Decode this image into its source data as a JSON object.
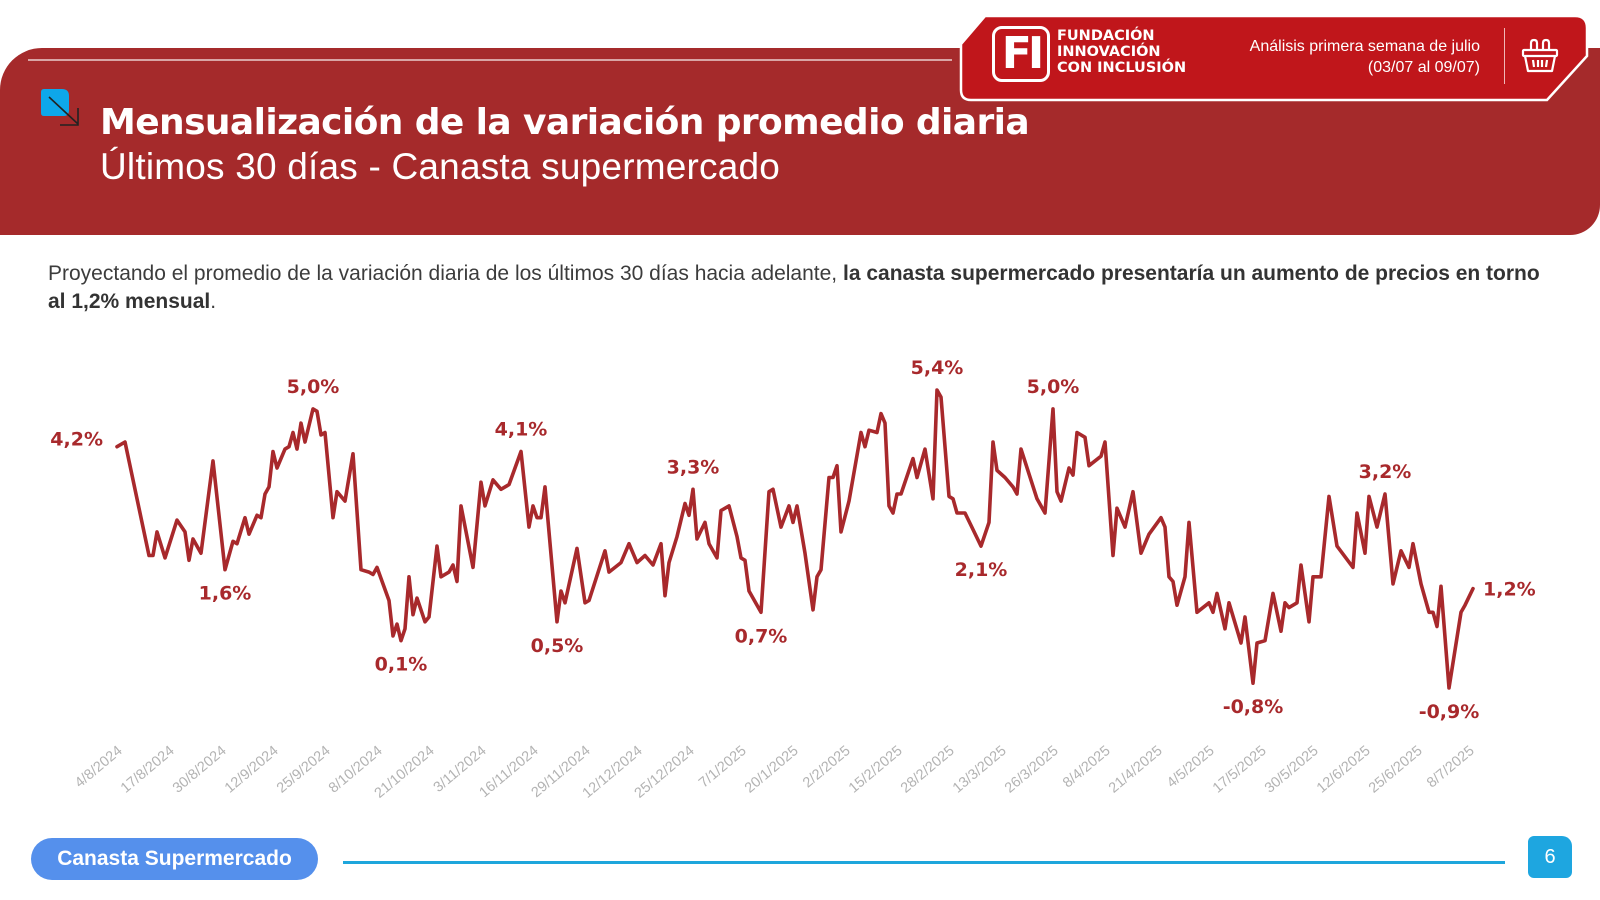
{
  "header": {
    "title": "Mensualización de la variación promedio diaria",
    "subtitle": "Últimos 30 días - Canasta supermercado",
    "logo_mark": "FI",
    "logo_lines": [
      "FUNDACIÓN",
      "INNOVACIÓN",
      "CON INCLUSIÓN"
    ],
    "analysis_line1": "Análisis primera semana de julio",
    "analysis_line2": "(03/07 al 09/07)",
    "icon": "shopping-basket-icon",
    "colors": {
      "band": "#a52a2b",
      "tab": "#c0161b",
      "accent_blue": "#1ea6e0"
    }
  },
  "intro": {
    "normal": "Proyectando el promedio de la variación diaria de los últimos 30 días hacia adelante, ",
    "bold": "la canasta supermercado presentaría un aumento de precios en torno al 1,2% mensual",
    "end": "."
  },
  "footer": {
    "section_label": "Canasta Supermercado",
    "page_number": "6"
  },
  "chart_data": {
    "type": "line",
    "title": "",
    "xlabel": "",
    "ylabel": "",
    "unit": "%",
    "grid": false,
    "line_color": "#a8292c",
    "x_ticks": [
      "4/8/2024",
      "17/8/2024",
      "30/8/2024",
      "12/9/2024",
      "25/9/2024",
      "8/10/2024",
      "21/10/2024",
      "3/11/2024",
      "16/11/2024",
      "29/11/2024",
      "12/12/2024",
      "25/12/2024",
      "7/1/2025",
      "20/1/2025",
      "2/2/2025",
      "15/2/2025",
      "28/2/2025",
      "13/3/2025",
      "26/3/2025",
      "8/4/2025",
      "21/4/2025",
      "4/5/2025",
      "17/5/2025",
      "30/5/2025",
      "12/6/2025",
      "25/6/2025",
      "8/7/2025"
    ],
    "ylim": [
      -1.2,
      5.6
    ],
    "series": [
      {
        "points": [
          [
            "4/8/2024",
            4.2
          ],
          [
            "6/8/2024",
            4.3
          ],
          [
            "12/8/2024",
            1.9
          ],
          [
            "13/8/2024",
            1.9
          ],
          [
            "14/8/2024",
            2.4
          ],
          [
            "16/8/2024",
            1.85
          ],
          [
            "19/8/2024",
            2.65
          ],
          [
            "21/8/2024",
            2.4
          ],
          [
            "22/8/2024",
            1.8
          ],
          [
            "23/8/2024",
            2.25
          ],
          [
            "25/8/2024",
            1.95
          ],
          [
            "28/8/2024",
            3.9
          ],
          [
            "31/8/2024",
            1.6
          ],
          [
            "2/9/2024",
            2.2
          ],
          [
            "3/9/2024",
            2.15
          ],
          [
            "5/9/2024",
            2.7
          ],
          [
            "6/9/2024",
            2.35
          ],
          [
            "8/9/2024",
            2.75
          ],
          [
            "9/9/2024",
            2.7
          ],
          [
            "10/9/2024",
            3.2
          ],
          [
            "11/9/2024",
            3.35
          ],
          [
            "12/9/2024",
            4.1
          ],
          [
            "13/9/2024",
            3.75
          ],
          [
            "15/9/2024",
            4.15
          ],
          [
            "16/9/2024",
            4.2
          ],
          [
            "17/9/2024",
            4.5
          ],
          [
            "18/9/2024",
            4.15
          ],
          [
            "19/9/2024",
            4.7
          ],
          [
            "20/9/2024",
            4.3
          ],
          [
            "22/9/2024",
            5.0
          ],
          [
            "23/9/2024",
            4.95
          ],
          [
            "24/9/2024",
            4.45
          ],
          [
            "25/9/2024",
            4.5
          ],
          [
            "27/9/2024",
            2.7
          ],
          [
            "28/9/2024",
            3.25
          ],
          [
            "30/9/2024",
            3.05
          ],
          [
            "2/10/2024",
            4.05
          ],
          [
            "4/10/2024",
            1.6
          ],
          [
            "6/10/2024",
            1.55
          ],
          [
            "7/10/2024",
            1.5
          ],
          [
            "8/10/2024",
            1.65
          ],
          [
            "11/10/2024",
            0.95
          ],
          [
            "12/10/2024",
            0.2
          ],
          [
            "13/10/2024",
            0.45
          ],
          [
            "14/10/2024",
            0.1
          ],
          [
            "15/10/2024",
            0.35
          ],
          [
            "16/10/2024",
            1.45
          ],
          [
            "17/10/2024",
            0.65
          ],
          [
            "18/10/2024",
            1.0
          ],
          [
            "20/10/2024",
            0.5
          ],
          [
            "21/10/2024",
            0.6
          ],
          [
            "23/10/2024",
            2.1
          ],
          [
            "24/10/2024",
            1.45
          ],
          [
            "26/10/2024",
            1.55
          ],
          [
            "27/10/2024",
            1.7
          ],
          [
            "28/10/2024",
            1.35
          ],
          [
            "29/10/2024",
            2.95
          ],
          [
            "1/11/2024",
            1.65
          ],
          [
            "3/11/2024",
            3.45
          ],
          [
            "4/11/2024",
            2.95
          ],
          [
            "6/11/2024",
            3.5
          ],
          [
            "8/11/2024",
            3.3
          ],
          [
            "10/11/2024",
            3.4
          ],
          [
            "13/11/2024",
            4.1
          ],
          [
            "15/11/2024",
            2.5
          ],
          [
            "16/11/2024",
            2.95
          ],
          [
            "17/11/2024",
            2.7
          ],
          [
            "18/11/2024",
            2.7
          ],
          [
            "19/11/2024",
            3.35
          ],
          [
            "22/11/2024",
            0.5
          ],
          [
            "23/11/2024",
            1.15
          ],
          [
            "24/11/2024",
            0.9
          ],
          [
            "27/11/2024",
            2.05
          ],
          [
            "29/11/2024",
            0.9
          ],
          [
            "30/11/2024",
            0.95
          ],
          [
            "4/12/2024",
            2.0
          ],
          [
            "5/12/2024",
            1.55
          ],
          [
            "8/12/2024",
            1.75
          ],
          [
            "10/12/2024",
            2.15
          ],
          [
            "12/12/2024",
            1.75
          ],
          [
            "14/12/2024",
            1.9
          ],
          [
            "16/12/2024",
            1.7
          ],
          [
            "18/12/2024",
            2.15
          ],
          [
            "19/12/2024",
            1.05
          ],
          [
            "20/12/2024",
            1.75
          ],
          [
            "22/12/2024",
            2.3
          ],
          [
            "24/12/2024",
            3.0
          ],
          [
            "25/12/2024",
            2.75
          ],
          [
            "26/12/2024",
            3.3
          ],
          [
            "27/12/2024",
            2.25
          ],
          [
            "29/12/2024",
            2.6
          ],
          [
            "30/12/2024",
            2.15
          ],
          [
            "1/1/2025",
            1.85
          ],
          [
            "2/1/2025",
            2.85
          ],
          [
            "4/1/2025",
            2.95
          ],
          [
            "6/1/2025",
            2.3
          ],
          [
            "7/1/2025",
            1.85
          ],
          [
            "8/1/2025",
            1.8
          ],
          [
            "9/1/2025",
            1.15
          ],
          [
            "12/1/2025",
            0.7
          ],
          [
            "14/1/2025",
            3.25
          ],
          [
            "15/1/2025",
            3.3
          ],
          [
            "17/1/2025",
            2.5
          ],
          [
            "19/1/2025",
            2.95
          ],
          [
            "20/1/2025",
            2.6
          ],
          [
            "21/1/2025",
            2.95
          ],
          [
            "23/1/2025",
            1.95
          ],
          [
            "25/1/2025",
            0.75
          ],
          [
            "26/1/2025",
            1.45
          ],
          [
            "27/1/2025",
            1.6
          ],
          [
            "29/1/2025",
            3.55
          ],
          [
            "30/1/2025",
            3.55
          ],
          [
            "31/1/2025",
            3.8
          ],
          [
            "1/2/2025",
            2.4
          ],
          [
            "3/2/2025",
            3.05
          ],
          [
            "6/2/2025",
            4.5
          ],
          [
            "7/2/2025",
            4.2
          ],
          [
            "8/2/2025",
            4.55
          ],
          [
            "10/2/2025",
            4.5
          ],
          [
            "11/2/2025",
            4.9
          ],
          [
            "12/2/2025",
            4.7
          ],
          [
            "13/2/2025",
            2.95
          ],
          [
            "14/2/2025",
            2.8
          ],
          [
            "15/2/2025",
            3.2
          ],
          [
            "16/2/2025",
            3.2
          ],
          [
            "19/2/2025",
            3.95
          ],
          [
            "20/2/2025",
            3.55
          ],
          [
            "22/2/2025",
            4.15
          ],
          [
            "24/2/2025",
            3.1
          ],
          [
            "25/2/2025",
            5.4
          ],
          [
            "26/2/2025",
            5.25
          ],
          [
            "28/2/2025",
            3.15
          ],
          [
            "1/3/2025",
            3.1
          ],
          [
            "2/3/2025",
            2.8
          ],
          [
            "4/3/2025",
            2.8
          ],
          [
            "6/3/2025",
            2.45
          ],
          [
            "8/3/2025",
            2.1
          ],
          [
            "10/3/2025",
            2.6
          ],
          [
            "11/3/2025",
            4.3
          ],
          [
            "12/3/2025",
            3.7
          ],
          [
            "14/3/2025",
            3.55
          ],
          [
            "16/3/2025",
            3.35
          ],
          [
            "17/3/2025",
            3.2
          ],
          [
            "18/3/2025",
            4.15
          ],
          [
            "22/3/2025",
            3.1
          ],
          [
            "24/3/2025",
            2.8
          ],
          [
            "26/3/2025",
            5.0
          ],
          [
            "27/3/2025",
            3.25
          ],
          [
            "28/3/2025",
            3.05
          ],
          [
            "30/3/2025",
            3.75
          ],
          [
            "31/3/2025",
            3.6
          ],
          [
            "1/4/2025",
            4.5
          ],
          [
            "3/4/2025",
            4.4
          ],
          [
            "4/4/2025",
            3.8
          ],
          [
            "7/4/2025",
            4.0
          ],
          [
            "8/4/2025",
            4.3
          ],
          [
            "10/4/2025",
            1.9
          ],
          [
            "11/4/2025",
            2.9
          ],
          [
            "13/4/2025",
            2.5
          ],
          [
            "15/4/2025",
            3.25
          ],
          [
            "17/4/2025",
            1.95
          ],
          [
            "19/4/2025",
            2.35
          ],
          [
            "22/4/2025",
            2.7
          ],
          [
            "23/4/2025",
            2.5
          ],
          [
            "24/4/2025",
            1.45
          ],
          [
            "25/4/2025",
            1.35
          ],
          [
            "26/4/2025",
            0.85
          ],
          [
            "28/4/2025",
            1.45
          ],
          [
            "29/4/2025",
            2.6
          ],
          [
            "1/5/2025",
            0.7
          ],
          [
            "4/5/2025",
            0.9
          ],
          [
            "5/5/2025",
            0.7
          ],
          [
            "6/5/2025",
            1.1
          ],
          [
            "8/5/2025",
            0.35
          ],
          [
            "9/5/2025",
            0.9
          ],
          [
            "12/5/2025",
            0.05
          ],
          [
            "13/5/2025",
            0.6
          ],
          [
            "15/5/2025",
            -0.8
          ],
          [
            "16/5/2025",
            0.05
          ],
          [
            "18/5/2025",
            0.1
          ],
          [
            "20/5/2025",
            1.1
          ],
          [
            "22/5/2025",
            0.3
          ],
          [
            "23/5/2025",
            0.9
          ],
          [
            "24/5/2025",
            0.8
          ],
          [
            "26/5/2025",
            0.9
          ],
          [
            "27/5/2025",
            1.7
          ],
          [
            "29/5/2025",
            0.5
          ],
          [
            "30/5/2025",
            1.45
          ],
          [
            "1/6/2025",
            1.45
          ],
          [
            "3/6/2025",
            3.15
          ],
          [
            "5/6/2025",
            2.1
          ],
          [
            "9/6/2025",
            1.65
          ],
          [
            "10/6/2025",
            2.8
          ],
          [
            "12/6/2025",
            1.95
          ],
          [
            "13/6/2025",
            3.15
          ],
          [
            "15/6/2025",
            2.5
          ],
          [
            "17/6/2025",
            3.2
          ],
          [
            "19/6/2025",
            1.3
          ],
          [
            "21/6/2025",
            2.0
          ],
          [
            "23/6/2025",
            1.65
          ],
          [
            "24/6/2025",
            2.15
          ],
          [
            "26/6/2025",
            1.3
          ],
          [
            "28/6/2025",
            0.7
          ],
          [
            "29/6/2025",
            0.7
          ],
          [
            "30/6/2025",
            0.4
          ],
          [
            "1/7/2025",
            1.25
          ],
          [
            "3/7/2025",
            -0.9
          ],
          [
            "6/7/2025",
            0.7
          ],
          [
            "7/7/2025",
            0.85
          ],
          [
            "9/7/2025",
            1.2
          ]
        ]
      }
    ],
    "annotations": [
      {
        "text": "4,2%",
        "date": "4/8/2024",
        "value": 4.2,
        "placement": "left"
      },
      {
        "text": "5,0%",
        "date": "22/9/2024",
        "value": 5.0,
        "placement": "above"
      },
      {
        "text": "1,6%",
        "date": "31/8/2024",
        "value": 1.6,
        "placement": "below"
      },
      {
        "text": "0,1%",
        "date": "14/10/2024",
        "value": 0.1,
        "placement": "below"
      },
      {
        "text": "4,1%",
        "date": "13/11/2024",
        "value": 4.1,
        "placement": "above"
      },
      {
        "text": "0,5%",
        "date": "22/11/2024",
        "value": 0.5,
        "placement": "below"
      },
      {
        "text": "3,3%",
        "date": "26/12/2024",
        "value": 3.3,
        "placement": "above"
      },
      {
        "text": "0,7%",
        "date": "12/1/2025",
        "value": 0.7,
        "placement": "below"
      },
      {
        "text": "5,4%",
        "date": "25/2/2025",
        "value": 5.4,
        "placement": "above"
      },
      {
        "text": "2,1%",
        "date": "8/3/2025",
        "value": 2.1,
        "placement": "below"
      },
      {
        "text": "5,0%",
        "date": "26/3/2025",
        "value": 5.0,
        "placement": "above"
      },
      {
        "text": "-0,8%",
        "date": "15/5/2025",
        "value": -0.8,
        "placement": "below"
      },
      {
        "text": "3,2%",
        "date": "17/6/2025",
        "value": 3.2,
        "placement": "above"
      },
      {
        "text": "-0,9%",
        "date": "3/7/2025",
        "value": -0.9,
        "placement": "below"
      },
      {
        "text": "1,2%",
        "date": "9/7/2025",
        "value": 1.2,
        "placement": "right"
      }
    ]
  }
}
